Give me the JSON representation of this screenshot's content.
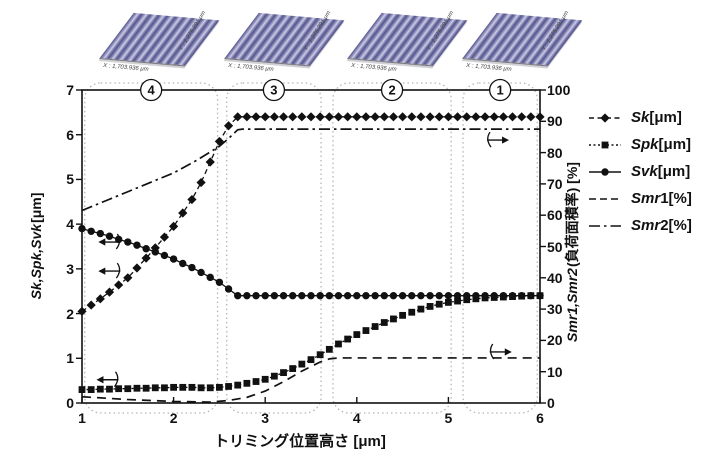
{
  "surface_panels": [
    {
      "x_label": "X : 1,703.936 μm",
      "y_label": "Y : 1,275.291 μm"
    },
    {
      "x_label": "X : 1,703.936 μm",
      "y_label": "Y : 1,275.291 μm"
    },
    {
      "x_label": "X : 1,703.936 μm",
      "y_label": "Y : 1,275.291 μm"
    },
    {
      "x_label": "X : 1,703.936 μm",
      "y_label": "Y : 1,275.291 μm"
    }
  ],
  "chart_data": {
    "type": "line",
    "title": "",
    "xlabel": "トリミング位置高さ [μm]",
    "ylabel_left_var": "Sk,Spk,Svk",
    "ylabel_left_unit": "[μm]",
    "ylabel_right_var": "Smr1,Smr2",
    "ylabel_right_rest": "(負荷面積率) [%]",
    "xlim": [
      1,
      6
    ],
    "ylim_left": [
      0,
      7
    ],
    "ylim_right": [
      0,
      100
    ],
    "x_ticks": [
      1,
      2,
      3,
      4,
      5,
      6
    ],
    "y_ticks_left": [
      0,
      1,
      2,
      3,
      4,
      5,
      6,
      7
    ],
    "y_ticks_right": [
      0,
      10,
      20,
      30,
      40,
      50,
      60,
      70,
      80,
      90,
      100
    ],
    "grid": false,
    "legend_position": "right",
    "regions": [
      {
        "label": "4",
        "x_start": 1.03,
        "x_end": 2.48
      },
      {
        "label": "3",
        "x_start": 2.58,
        "x_end": 3.61
      },
      {
        "label": "2",
        "x_start": 3.74,
        "x_end": 5.03
      },
      {
        "label": "1",
        "x_start": 5.16,
        "x_end": 5.97
      }
    ],
    "series": [
      {
        "name_var": "Sk",
        "name_rest": "[μm]",
        "axis": "left",
        "marker": "diamond",
        "line": "dashed",
        "x_start": 1,
        "x_step": 0.1,
        "y": [
          2.05,
          2.19,
          2.33,
          2.48,
          2.64,
          2.8,
          3.02,
          3.24,
          3.47,
          3.71,
          3.95,
          4.25,
          4.55,
          4.93,
          5.39,
          5.85,
          6.2,
          6.4,
          6.4,
          6.4,
          6.4,
          6.4,
          6.4,
          6.4,
          6.4,
          6.4,
          6.4,
          6.4,
          6.4,
          6.4,
          6.4,
          6.4,
          6.4,
          6.4,
          6.4,
          6.4,
          6.4,
          6.4,
          6.4,
          6.4,
          6.4,
          6.4,
          6.4,
          6.4,
          6.4,
          6.4,
          6.4,
          6.4,
          6.4,
          6.4,
          6.4
        ]
      },
      {
        "name_var": "Spk",
        "name_rest": "[μm]",
        "axis": "left",
        "marker": "square",
        "line": "dotted",
        "x_start": 1,
        "x_step": 0.1,
        "y": [
          0.3,
          0.3,
          0.31,
          0.31,
          0.32,
          0.32,
          0.33,
          0.33,
          0.34,
          0.34,
          0.35,
          0.35,
          0.35,
          0.34,
          0.34,
          0.35,
          0.37,
          0.4,
          0.44,
          0.48,
          0.53,
          0.6,
          0.68,
          0.77,
          0.87,
          0.97,
          1.08,
          1.2,
          1.32,
          1.43,
          1.53,
          1.62,
          1.71,
          1.8,
          1.88,
          1.96,
          2.03,
          2.1,
          2.16,
          2.21,
          2.25,
          2.28,
          2.31,
          2.33,
          2.35,
          2.36,
          2.37,
          2.38,
          2.39,
          2.4,
          2.4
        ]
      },
      {
        "name_var": "Svk",
        "name_rest": "[μm]",
        "axis": "left",
        "marker": "circle",
        "line": "solid",
        "x_start": 1,
        "x_step": 0.1,
        "y": [
          3.9,
          3.84,
          3.79,
          3.73,
          3.66,
          3.6,
          3.53,
          3.45,
          3.38,
          3.3,
          3.22,
          3.12,
          3.03,
          2.92,
          2.81,
          2.7,
          2.55,
          2.4,
          2.4,
          2.4,
          2.4,
          2.4,
          2.4,
          2.4,
          2.4,
          2.4,
          2.4,
          2.4,
          2.4,
          2.4,
          2.4,
          2.4,
          2.4,
          2.4,
          2.4,
          2.4,
          2.4,
          2.4,
          2.4,
          2.4,
          2.4,
          2.4,
          2.4,
          2.4,
          2.4,
          2.4,
          2.4,
          2.4,
          2.4,
          2.4,
          2.4
        ]
      },
      {
        "name_var": "Smr",
        "name_rest": "1[%]",
        "axis": "right",
        "marker": "none",
        "line": "dashed",
        "x": [
          1.0,
          1.5,
          2.0,
          2.4,
          2.6,
          2.8,
          3.0,
          3.2,
          3.4,
          3.6,
          3.7,
          3.8,
          6.0
        ],
        "y": [
          2.0,
          1.1,
          0.5,
          0.3,
          0.8,
          1.8,
          3.8,
          6.8,
          10.2,
          13.1,
          14.1,
          14.4,
          14.4
        ]
      },
      {
        "name_var": "Smr",
        "name_rest": "2[%]",
        "axis": "right",
        "marker": "none",
        "line": "dashdot",
        "x": [
          1.0,
          1.25,
          1.5,
          1.75,
          2.0,
          2.25,
          2.5,
          2.6,
          2.7,
          2.75,
          6.0
        ],
        "y": [
          61.5,
          64.5,
          67.5,
          70.5,
          73.5,
          77.5,
          82.0,
          84.5,
          87.3,
          87.5,
          87.5
        ]
      }
    ],
    "axis_pointers": [
      {
        "target": "Svk",
        "dir": "left",
        "axis": "left",
        "x": 1.32,
        "y": 3.6
      },
      {
        "target": "Sk",
        "dir": "left",
        "axis": "left",
        "x": 1.32,
        "y": 2.95
      },
      {
        "target": "Spk",
        "dir": "left",
        "axis": "left",
        "x": 1.3,
        "y": 0.52
      },
      {
        "target": "Smr2",
        "dir": "right",
        "axis": "right",
        "x": 5.52,
        "y": 84.0
      },
      {
        "target": "Smr1",
        "dir": "right",
        "axis": "right",
        "x": 5.55,
        "y": 16.3
      }
    ],
    "colors": {
      "line": "#111111",
      "band_outline": "#b5b5b5",
      "surface": "#8484b4"
    }
  }
}
